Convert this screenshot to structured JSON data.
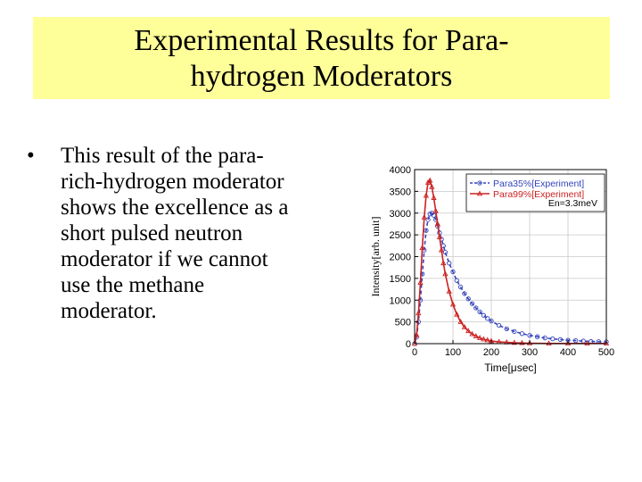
{
  "slide": {
    "title_lines": [
      "Experimental Results for Para-",
      "hydrogen Moderators"
    ],
    "bullet_symbol": "•",
    "bullet_lines": [
      "This result of the para-",
      "rich-hydrogen moderator",
      "shows the excellence as a",
      "short pulsed neutron",
      "moderator if we cannot",
      "use the methane",
      "moderator."
    ],
    "colors": {
      "title_bg": "#ffff99"
    }
  },
  "chart_data": {
    "type": "line",
    "xlabel": "Time[μsec]",
    "ylabel": "Intensity[arb. unit]",
    "xlim": [
      0,
      500
    ],
    "ylim": [
      0,
      4000
    ],
    "xticks": [
      0,
      100,
      200,
      300,
      400,
      500
    ],
    "yticks": [
      0,
      500,
      1000,
      1500,
      2000,
      2500,
      3000,
      3500,
      4000
    ],
    "grid": true,
    "legend_position": "top-right",
    "annotation": "En=3.3meV",
    "series": [
      {
        "name": "Para35%[Experiment]",
        "color": "#3344bb",
        "style": "dashed",
        "marker": "circle",
        "x": [
          0,
          5,
          10,
          15,
          20,
          25,
          30,
          35,
          40,
          45,
          50,
          55,
          60,
          65,
          70,
          75,
          80,
          90,
          100,
          110,
          120,
          130,
          140,
          150,
          160,
          170,
          180,
          190,
          200,
          220,
          240,
          260,
          280,
          300,
          320,
          340,
          360,
          380,
          400,
          420,
          440,
          460,
          480,
          500
        ],
        "y": [
          0,
          150,
          500,
          1000,
          1600,
          2150,
          2600,
          2850,
          2980,
          3000,
          2950,
          2850,
          2700,
          2550,
          2400,
          2250,
          2100,
          1850,
          1650,
          1450,
          1300,
          1150,
          1030,
          920,
          820,
          730,
          650,
          580,
          520,
          420,
          340,
          280,
          230,
          190,
          160,
          130,
          110,
          95,
          80,
          70,
          60,
          50,
          45,
          40
        ]
      },
      {
        "name": "Para99%[Experiment]",
        "color": "#cc2222",
        "style": "solid",
        "marker": "triangle",
        "x": [
          0,
          5,
          10,
          15,
          20,
          25,
          30,
          35,
          40,
          45,
          50,
          55,
          60,
          65,
          70,
          75,
          80,
          90,
          100,
          110,
          120,
          130,
          140,
          150,
          160,
          170,
          180,
          190,
          200,
          220,
          240,
          260,
          280,
          300,
          350,
          400,
          450,
          500
        ],
        "y": [
          0,
          200,
          700,
          1400,
          2200,
          2900,
          3400,
          3700,
          3750,
          3600,
          3350,
          3050,
          2750,
          2450,
          2150,
          1850,
          1600,
          1200,
          900,
          670,
          500,
          380,
          290,
          220,
          170,
          130,
          100,
          80,
          60,
          40,
          30,
          20,
          15,
          10,
          5,
          5,
          5,
          5
        ]
      }
    ]
  }
}
